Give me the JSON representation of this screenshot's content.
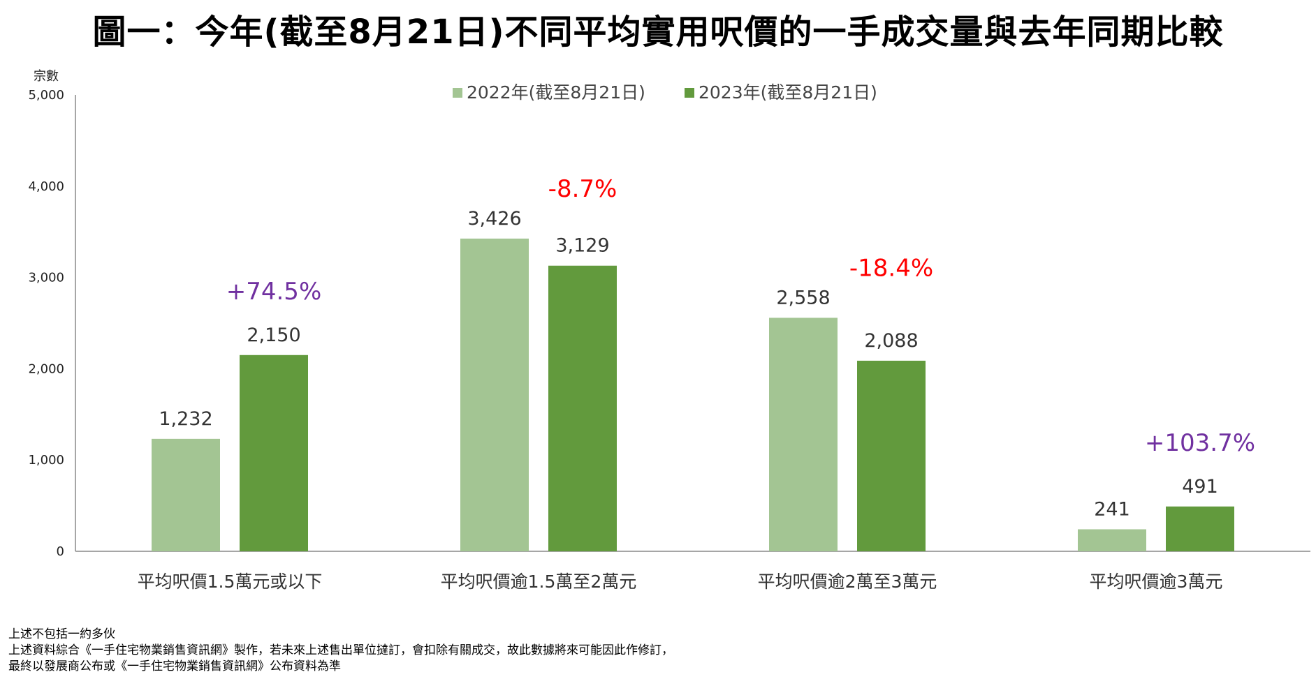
{
  "title": "圖一：今年(截至8月21日)不同平均實用呎價的一手成交量與去年同期比較",
  "chart_data": {
    "type": "bar",
    "ylabel": "宗數",
    "ylim": [
      0,
      5000
    ],
    "yticks": [
      "0",
      "1,000",
      "2,000",
      "3,000",
      "4,000",
      "5,000"
    ],
    "categories": [
      "平均呎價1.5萬元或以下",
      "平均呎價逾1.5萬至2萬元",
      "平均呎價逾2萬至3萬元",
      "平均呎價逾3萬元"
    ],
    "legend_position": "top-center",
    "grid": false,
    "series": [
      {
        "name": "2022年(截至8月21日)",
        "color": "#a3c593",
        "values": [
          1232,
          3426,
          2558,
          241
        ],
        "labels": [
          "1,232",
          "3,426",
          "2,558",
          "241"
        ]
      },
      {
        "name": "2023年(截至8月21日)",
        "color": "#629a3d",
        "values": [
          2150,
          3129,
          2088,
          491
        ],
        "labels": [
          "2,150",
          "3,129",
          "2,088",
          "491"
        ]
      }
    ],
    "changes": [
      {
        "text": "+74.5%",
        "color": "#7030a0"
      },
      {
        "text": "-8.7%",
        "color": "#ff0000"
      },
      {
        "text": "-18.4%",
        "color": "#ff0000"
      },
      {
        "text": "+103.7%",
        "color": "#7030a0"
      }
    ]
  },
  "notes": [
    "上述不包括一約多伙",
    "上述資料綜合《一手住宅物業銷售資訊網》製作，若未來上述售出單位撻訂，會扣除有關成交，故此數據將來可能因此作修訂，",
    "最終以發展商公布或《一手住宅物業銷售資訊網》公布資料為準"
  ]
}
